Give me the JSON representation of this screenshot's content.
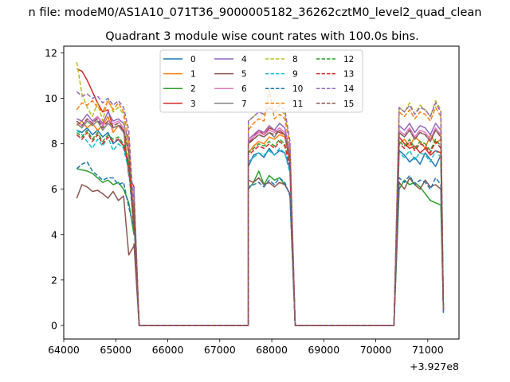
{
  "chart_data": {
    "type": "line",
    "suptitle": "n file: modeM0/AS1A10_071T36_9000005182_36262cztM0_level2_quad_clean",
    "title": "Quadrant 3 module wise count rates with 100.0s bins.",
    "xlabel": "",
    "ylabel": "",
    "x_offset_label": "+3.927e8",
    "x_offset": 392700000,
    "xlim": [
      64000,
      71600
    ],
    "ylim": [
      -0.6,
      12.3
    ],
    "x_ticks": [
      64000,
      65000,
      66000,
      67000,
      68000,
      69000,
      70000,
      71000
    ],
    "x_tick_labels": [
      "64000",
      "65000",
      "66000",
      "67000",
      "68000",
      "69000",
      "70000",
      "71000"
    ],
    "y_ticks": [
      0,
      2,
      4,
      6,
      8,
      10,
      12
    ],
    "y_tick_labels": [
      "0",
      "2",
      "4",
      "6",
      "8",
      "10",
      "12"
    ],
    "grid": false,
    "legend_position": "top-center",
    "legend_columns": 4,
    "segments": [
      {
        "x_start": 64250,
        "x_end": 65350
      },
      {
        "x_start": 67550,
        "x_end": 68350
      },
      {
        "x_start": 70450,
        "x_end": 71250
      }
    ],
    "zero_ranges": [
      [
        65450,
        67550
      ],
      [
        68450,
        70350
      ]
    ],
    "series": [
      {
        "name": "0",
        "color": "#1f77b4",
        "style": "solid",
        "seg_values": [
          [
            8.6,
            8.5,
            8.7,
            8.4,
            8.6,
            8.3,
            8.5,
            8.0,
            8.2,
            7.9,
            7.0,
            4.3
          ],
          [
            7.0,
            7.5,
            7.6,
            7.4,
            7.8,
            7.5,
            7.7,
            7.6,
            6.9
          ],
          [
            7.7,
            7.5,
            7.2,
            7.4,
            7.1,
            7.6,
            7.3,
            7.0,
            7.5
          ]
        ],
        "ends": [
          5.0,
          0.55
        ]
      },
      {
        "name": "1",
        "color": "#ff7f0e",
        "style": "solid",
        "seg_values": [
          [
            8.8,
            9.0,
            8.7,
            8.9,
            8.6,
            8.8,
            9.2,
            8.5,
            8.8,
            8.6,
            7.6,
            4.4
          ],
          [
            7.6,
            7.9,
            8.1,
            8.0,
            8.3,
            8.2,
            8.4,
            8.3,
            7.3
          ],
          [
            8.0,
            8.2,
            7.9,
            8.3,
            8.1,
            7.8,
            8.4,
            8.0,
            8.2
          ]
        ],
        "ends": [
          5.3,
          0.7
        ]
      },
      {
        "name": "2",
        "color": "#2ca02c",
        "style": "solid",
        "seg_values": [
          [
            6.9,
            6.85,
            6.8,
            6.7,
            6.5,
            6.3,
            6.4,
            6.2,
            6.3,
            6.0,
            5.4,
            4.0
          ],
          [
            6.0,
            6.3,
            6.8,
            6.2,
            6.6,
            6.4,
            6.5,
            6.2,
            5.8
          ],
          [
            6.0,
            6.4,
            6.2,
            6.3,
            6.1,
            5.8,
            5.5,
            5.4,
            5.3
          ]
        ],
        "ends": [
          4.8,
          0.8
        ]
      },
      {
        "name": "3",
        "color": "#d62728",
        "style": "solid",
        "seg_values": [
          [
            11.3,
            11.2,
            10.8,
            10.3,
            9.8,
            9.4,
            9.5,
            8.7,
            8.8,
            8.6,
            6.6,
            6.1
          ],
          [
            8.0,
            8.3,
            8.6,
            8.4,
            8.7,
            8.6,
            8.5,
            8.4,
            7.2
          ],
          [
            8.3,
            8.0,
            7.8,
            7.9,
            7.6,
            7.8,
            7.5,
            7.7,
            7.6
          ]
        ],
        "ends": [
          5.8,
          0.8
        ]
      },
      {
        "name": "4",
        "color": "#9467bd",
        "style": "solid",
        "seg_values": [
          [
            9.1,
            9.0,
            9.3,
            9.0,
            9.2,
            8.9,
            9.4,
            9.0,
            9.1,
            8.9,
            8.1,
            4.5
          ],
          [
            8.2,
            8.4,
            8.6,
            8.5,
            8.8,
            8.6,
            8.9,
            8.7,
            7.6
          ],
          [
            8.8,
            8.6,
            8.9,
            8.5,
            8.8,
            8.7,
            8.4,
            8.9,
            8.6
          ]
        ],
        "ends": [
          5.5,
          0.7
        ]
      },
      {
        "name": "5",
        "color": "#8c564b",
        "style": "solid",
        "seg_values": [
          [
            5.6,
            6.2,
            6.1,
            5.9,
            5.95,
            5.8,
            5.6,
            5.9,
            5.5,
            5.7,
            3.1,
            3.5
          ],
          [
            6.4,
            6.3,
            6.5,
            6.2,
            6.3,
            6.1,
            6.3,
            6.2,
            5.8
          ],
          [
            6.3,
            6.0,
            6.5,
            6.2,
            6.0,
            6.4,
            6.1,
            6.2,
            6.0
          ]
        ],
        "ends": [
          3.6,
          0.7
        ]
      },
      {
        "name": "6",
        "color": "#e377c2",
        "style": "solid",
        "seg_values": [
          [
            9.0,
            8.8,
            9.1,
            8.9,
            9.2,
            8.8,
            9.0,
            8.9,
            9.0,
            8.7,
            7.8,
            4.6
          ],
          [
            8.1,
            8.3,
            8.5,
            8.4,
            8.6,
            8.5,
            8.7,
            8.5,
            7.5
          ],
          [
            8.6,
            8.4,
            8.7,
            8.3,
            8.6,
            8.5,
            8.2,
            8.7,
            8.4
          ]
        ],
        "ends": [
          5.5,
          0.7
        ]
      },
      {
        "name": "7",
        "color": "#7f7f7f",
        "style": "solid",
        "seg_values": [
          [
            8.9,
            8.7,
            9.0,
            8.8,
            9.0,
            8.6,
            8.9,
            8.7,
            8.8,
            8.5,
            7.6,
            4.5
          ],
          [
            8.0,
            8.2,
            8.4,
            8.3,
            8.5,
            8.3,
            8.6,
            8.4,
            7.4
          ],
          [
            8.5,
            8.3,
            8.6,
            8.2,
            8.5,
            8.4,
            8.1,
            8.6,
            8.3
          ]
        ],
        "ends": [
          5.4,
          0.7
        ]
      },
      {
        "name": "8",
        "color": "#bcbd22",
        "style": "dashed",
        "seg_values": [
          [
            11.6,
            10.2,
            9.6,
            9.2,
            9.8,
            9.0,
            10.0,
            9.4,
            9.6,
            9.3,
            7.2,
            4.8
          ],
          [
            9.0,
            9.2,
            9.4,
            9.3,
            9.6,
            9.4,
            9.5,
            9.3,
            7.9
          ],
          [
            9.6,
            9.4,
            9.8,
            9.3,
            9.7,
            9.5,
            9.2,
            9.9,
            9.5
          ]
        ],
        "ends": [
          6.0,
          0.8
        ]
      },
      {
        "name": "9",
        "color": "#17becf",
        "style": "dashed",
        "seg_values": [
          [
            8.6,
            8.4,
            8.1,
            7.8,
            8.2,
            7.9,
            8.3,
            7.7,
            8.0,
            7.8,
            6.8,
            4.2
          ],
          [
            7.2,
            7.4,
            7.6,
            7.5,
            7.7,
            7.5,
            7.8,
            7.6,
            6.7
          ],
          [
            7.6,
            7.4,
            7.7,
            7.3,
            7.6,
            7.5,
            7.2,
            7.7,
            7.4
          ]
        ],
        "ends": [
          4.9,
          0.65
        ]
      },
      {
        "name": "10",
        "color": "#1f77b4",
        "style": "dashed",
        "seg_values": [
          [
            6.9,
            7.1,
            7.2,
            6.8,
            6.6,
            6.4,
            6.5,
            6.5,
            6.2,
            6.3,
            5.2,
            4.3
          ],
          [
            6.1,
            6.2,
            6.3,
            6.1,
            6.4,
            6.2,
            6.5,
            6.3,
            5.7
          ],
          [
            6.5,
            6.3,
            6.6,
            6.2,
            6.4,
            6.3,
            6.0,
            6.5,
            6.2
          ]
        ],
        "ends": [
          4.6,
          0.6
        ]
      },
      {
        "name": "11",
        "color": "#ff7f0e",
        "style": "dashed",
        "seg_values": [
          [
            9.5,
            9.8,
            9.7,
            9.9,
            9.6,
            9.4,
            9.9,
            9.5,
            9.8,
            9.4,
            8.2,
            4.7
          ],
          [
            8.6,
            8.9,
            9.1,
            9.0,
            10.4,
            9.1,
            9.3,
            9.1,
            7.9
          ],
          [
            9.4,
            9.2,
            9.5,
            9.1,
            9.4,
            9.3,
            9.0,
            9.6,
            9.2
          ]
        ],
        "ends": [
          5.8,
          0.75
        ]
      },
      {
        "name": "12",
        "color": "#2ca02c",
        "style": "dashed",
        "seg_values": [
          [
            8.5,
            8.3,
            8.6,
            8.2,
            8.5,
            8.1,
            8.4,
            8.2,
            8.3,
            8.0,
            7.2,
            4.3
          ],
          [
            7.6,
            7.8,
            8.0,
            7.9,
            8.1,
            7.9,
            8.2,
            8.0,
            7.1
          ],
          [
            8.1,
            7.9,
            8.2,
            7.8,
            8.1,
            8.0,
            7.7,
            8.2,
            7.9
          ]
        ],
        "ends": [
          5.2,
          0.7
        ]
      },
      {
        "name": "13",
        "color": "#d62728",
        "style": "dashed",
        "seg_values": [
          [
            8.4,
            8.2,
            8.5,
            8.1,
            8.4,
            8.0,
            8.3,
            8.1,
            8.2,
            7.9,
            7.1,
            4.2
          ],
          [
            7.5,
            7.7,
            7.9,
            7.8,
            8.0,
            7.8,
            8.1,
            7.9,
            7.0
          ],
          [
            8.0,
            7.8,
            8.1,
            7.7,
            8.0,
            7.9,
            7.6,
            8.1,
            7.8
          ]
        ],
        "ends": [
          5.1,
          0.7
        ]
      },
      {
        "name": "14",
        "color": "#9467bd",
        "style": "dashed",
        "seg_values": [
          [
            10.3,
            10.1,
            10.2,
            10.0,
            10.1,
            9.8,
            10.0,
            9.7,
            9.9,
            9.6,
            8.6,
            4.9
          ],
          [
            9.0,
            9.2,
            9.4,
            9.3,
            9.6,
            9.4,
            9.7,
            9.5,
            8.1
          ],
          [
            9.6,
            9.4,
            9.7,
            9.3,
            9.6,
            9.5,
            9.2,
            9.8,
            9.4
          ]
        ],
        "ends": [
          6.1,
          0.8
        ]
      },
      {
        "name": "15",
        "color": "#8c564b",
        "style": "dashed",
        "seg_values": [
          [
            9.0,
            8.8,
            9.1,
            8.9,
            9.1,
            8.7,
            9.0,
            8.8,
            8.9,
            8.6,
            7.7,
            4.4
          ],
          [
            8.0,
            8.2,
            8.4,
            8.3,
            8.5,
            8.4,
            8.6,
            8.4,
            7.4
          ],
          [
            8.5,
            8.3,
            8.6,
            8.2,
            8.5,
            8.4,
            8.1,
            8.6,
            8.3
          ]
        ],
        "ends": [
          5.4,
          0.7
        ]
      }
    ]
  }
}
